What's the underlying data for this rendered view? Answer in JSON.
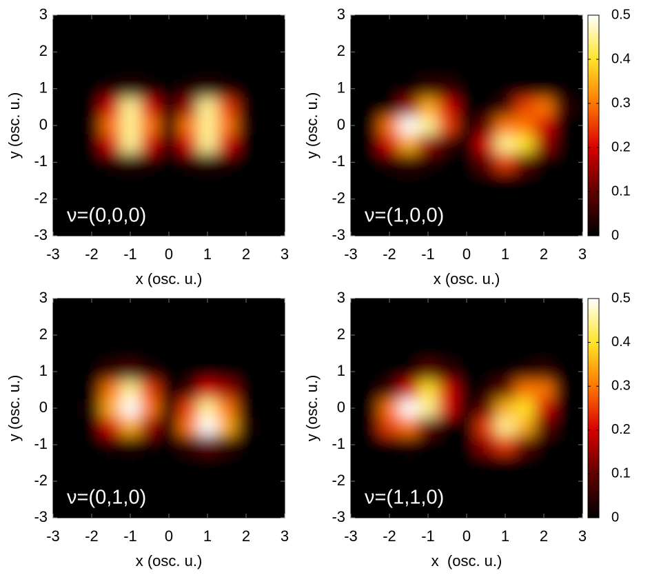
{
  "chart_data": [
    {
      "type": "heatmap",
      "annotation": "ν=(0,0,0)",
      "xlabel": "x (osc. u.)",
      "ylabel": "y (osc. u.)",
      "xlim": [
        -3,
        3
      ],
      "ylim": [
        -3,
        3
      ],
      "xticks": [
        -3,
        -2,
        -1,
        0,
        1,
        2,
        3
      ],
      "yticks": [
        -3,
        -2,
        -1,
        0,
        1,
        2,
        3
      ],
      "zlim": [
        0,
        0.5
      ],
      "colormap": [
        "#000000",
        "#600000",
        "#d80000",
        "#ff7800",
        "#ffe428",
        "#ffffff"
      ],
      "x": [
        -3,
        -2.5,
        -2,
        -1.5,
        -1,
        -0.5,
        0,
        0.5,
        1,
        1.5,
        2,
        2.5,
        3
      ],
      "y": [
        3,
        2.5,
        2,
        1.5,
        1,
        0.5,
        0,
        -0.5,
        -1,
        -1.5,
        -2,
        -2.5,
        -3
      ],
      "z": [
        [
          0,
          0,
          0,
          0,
          0,
          0,
          0,
          0,
          0,
          0,
          0,
          0,
          0
        ],
        [
          0,
          0,
          0,
          0,
          0,
          0,
          0,
          0,
          0,
          0,
          0,
          0,
          0
        ],
        [
          0,
          0,
          0,
          0,
          0,
          0,
          0,
          0,
          0,
          0,
          0,
          0,
          0
        ],
        [
          0,
          0,
          0,
          0,
          0,
          0,
          0,
          0,
          0,
          0,
          0,
          0,
          0
        ],
        [
          0,
          0,
          0,
          0.02,
          0.04,
          0.02,
          0,
          0.02,
          0.04,
          0.02,
          0,
          0,
          0
        ],
        [
          0,
          0,
          0,
          0.2,
          0.45,
          0.2,
          0.02,
          0.15,
          0.45,
          0.25,
          0,
          0,
          0
        ],
        [
          0,
          0,
          0.01,
          0.3,
          0.45,
          0.3,
          0.03,
          0.3,
          0.45,
          0.3,
          0.01,
          0,
          0
        ],
        [
          0,
          0,
          0,
          0.2,
          0.45,
          0.2,
          0.02,
          0.2,
          0.45,
          0.2,
          0,
          0,
          0
        ],
        [
          0,
          0,
          0,
          0.02,
          0.04,
          0.02,
          0,
          0.02,
          0.04,
          0.02,
          0,
          0,
          0
        ],
        [
          0,
          0,
          0,
          0,
          0,
          0,
          0,
          0,
          0,
          0,
          0,
          0,
          0
        ],
        [
          0,
          0,
          0,
          0,
          0,
          0,
          0,
          0,
          0,
          0,
          0,
          0,
          0
        ],
        [
          0,
          0,
          0,
          0,
          0,
          0,
          0,
          0,
          0,
          0,
          0,
          0,
          0
        ],
        [
          0,
          0,
          0,
          0,
          0,
          0,
          0,
          0,
          0,
          0,
          0,
          0,
          0
        ]
      ]
    },
    {
      "type": "heatmap",
      "annotation": "ν=(1,0,0)",
      "xlabel": "x (osc. u.)",
      "ylabel": "y (osc. u.)",
      "xlim": [
        -3,
        3
      ],
      "ylim": [
        -3,
        3
      ],
      "xticks": [
        -3,
        -2,
        -1,
        0,
        1,
        2,
        3
      ],
      "yticks": [
        -3,
        -2,
        -1,
        0,
        1,
        2,
        3
      ],
      "zlim": [
        0,
        0.5
      ],
      "colormap": [
        "#000000",
        "#600000",
        "#d80000",
        "#ff7800",
        "#ffe428",
        "#ffffff"
      ],
      "colorbar": {
        "ticks": [
          0,
          0.1,
          0.2,
          0.3,
          0.4,
          0.5
        ]
      },
      "x": [
        -3,
        -2.5,
        -2,
        -1.5,
        -1,
        -0.5,
        0,
        0.5,
        1,
        1.5,
        2,
        2.5,
        3
      ],
      "y": [
        3,
        2.5,
        2,
        1.5,
        1,
        0.5,
        0,
        -0.5,
        -1,
        -1.5,
        -2,
        -2.5,
        -3
      ],
      "z": [
        [
          0,
          0,
          0,
          0,
          0,
          0,
          0,
          0,
          0,
          0,
          0,
          0,
          0
        ],
        [
          0,
          0,
          0,
          0,
          0,
          0,
          0,
          0,
          0,
          0,
          0,
          0,
          0
        ],
        [
          0,
          0,
          0,
          0,
          0,
          0,
          0,
          0,
          0,
          0,
          0,
          0,
          0
        ],
        [
          0,
          0,
          0,
          0,
          0,
          0,
          0,
          0,
          0,
          0,
          0,
          0,
          0
        ],
        [
          0,
          0,
          0,
          0,
          0.05,
          0.05,
          0,
          0,
          0,
          0,
          0,
          0,
          0
        ],
        [
          0,
          0,
          0,
          0.15,
          0.35,
          0.2,
          0,
          0,
          0.05,
          0.25,
          0.3,
          0.05,
          0
        ],
        [
          0,
          0,
          0.3,
          0.5,
          0.45,
          0.25,
          0,
          0.1,
          0.3,
          0.3,
          0.2,
          0,
          0
        ],
        [
          0,
          0,
          0.2,
          0.35,
          0.15,
          0.05,
          0,
          0.2,
          0.45,
          0.4,
          0.15,
          0,
          0
        ],
        [
          0,
          0,
          0.02,
          0.05,
          0.02,
          0,
          0,
          0.1,
          0.25,
          0.1,
          0,
          0,
          0
        ],
        [
          0,
          0,
          0,
          0,
          0,
          0,
          0,
          0,
          0,
          0,
          0,
          0,
          0
        ],
        [
          0,
          0,
          0,
          0,
          0,
          0,
          0,
          0,
          0,
          0,
          0,
          0,
          0
        ],
        [
          0,
          0,
          0,
          0,
          0,
          0,
          0,
          0,
          0,
          0,
          0,
          0,
          0
        ],
        [
          0,
          0,
          0,
          0,
          0,
          0,
          0,
          0,
          0,
          0,
          0,
          0,
          0
        ]
      ]
    },
    {
      "type": "heatmap",
      "annotation": "ν=(0,1,0)",
      "xlabel": "x (osc. u.)",
      "ylabel": "y (osc. u.)",
      "xlim": [
        -3,
        3
      ],
      "ylim": [
        -3,
        3
      ],
      "xticks": [
        -3,
        -2,
        -1,
        0,
        1,
        2,
        3
      ],
      "yticks": [
        -3,
        -2,
        -1,
        0,
        1,
        2,
        3
      ],
      "zlim": [
        0,
        0.5
      ],
      "colormap": [
        "#000000",
        "#600000",
        "#d80000",
        "#ff7800",
        "#ffe428",
        "#ffffff"
      ],
      "x": [
        -3,
        -2.5,
        -2,
        -1.5,
        -1,
        -0.5,
        0,
        0.5,
        1,
        1.5,
        2,
        2.5,
        3
      ],
      "y": [
        3,
        2.5,
        2,
        1.5,
        1,
        0.5,
        0,
        -0.5,
        -1,
        -1.5,
        -2,
        -2.5,
        -3
      ],
      "z": [
        [
          0,
          0,
          0,
          0,
          0,
          0,
          0,
          0,
          0,
          0,
          0,
          0,
          0
        ],
        [
          0,
          0,
          0,
          0,
          0,
          0,
          0,
          0,
          0,
          0,
          0,
          0,
          0
        ],
        [
          0,
          0,
          0,
          0,
          0,
          0,
          0,
          0,
          0,
          0,
          0,
          0,
          0
        ],
        [
          0,
          0,
          0,
          0,
          0,
          0,
          0,
          0,
          0,
          0,
          0,
          0,
          0
        ],
        [
          0,
          0,
          0,
          0.05,
          0.08,
          0.03,
          0,
          0,
          0,
          0,
          0,
          0,
          0
        ],
        [
          0,
          0,
          0,
          0.3,
          0.45,
          0.25,
          0,
          0.05,
          0.2,
          0.15,
          0,
          0,
          0
        ],
        [
          0,
          0,
          0.02,
          0.35,
          0.5,
          0.3,
          0.02,
          0.25,
          0.45,
          0.3,
          0,
          0,
          0
        ],
        [
          0,
          0,
          0,
          0.2,
          0.35,
          0.15,
          0.02,
          0.3,
          0.5,
          0.35,
          0.02,
          0,
          0
        ],
        [
          0,
          0,
          0,
          0.02,
          0.03,
          0.01,
          0,
          0.05,
          0.1,
          0.05,
          0,
          0,
          0
        ],
        [
          0,
          0,
          0,
          0,
          0,
          0,
          0,
          0,
          0,
          0,
          0,
          0,
          0
        ],
        [
          0,
          0,
          0,
          0,
          0,
          0,
          0,
          0,
          0,
          0,
          0,
          0,
          0
        ],
        [
          0,
          0,
          0,
          0,
          0,
          0,
          0,
          0,
          0,
          0,
          0,
          0,
          0
        ],
        [
          0,
          0,
          0,
          0,
          0,
          0,
          0,
          0,
          0,
          0,
          0,
          0,
          0
        ]
      ]
    },
    {
      "type": "heatmap",
      "annotation": "ν=(1,1,0)",
      "xlabel": "x  (osc. u.)",
      "ylabel": "y (osc. u.)",
      "xlim": [
        -3,
        3
      ],
      "ylim": [
        -3,
        3
      ],
      "xticks": [
        -3,
        -2,
        -1,
        0,
        1,
        2,
        3
      ],
      "yticks": [
        -3,
        -2,
        -1,
        0,
        1,
        2,
        3
      ],
      "zlim": [
        0,
        0.5
      ],
      "colormap": [
        "#000000",
        "#600000",
        "#d80000",
        "#ff7800",
        "#ffe428",
        "#ffffff"
      ],
      "colorbar": {
        "ticks": [
          0,
          0.1,
          0.2,
          0.3,
          0.4,
          0.5
        ]
      },
      "x": [
        -3,
        -2.5,
        -2,
        -1.5,
        -1,
        -0.5,
        0,
        0.5,
        1,
        1.5,
        2,
        2.5,
        3
      ],
      "y": [
        3,
        2.5,
        2,
        1.5,
        1,
        0.5,
        0,
        -0.5,
        -1,
        -1.5,
        -2,
        -2.5,
        -3
      ],
      "z": [
        [
          0,
          0,
          0,
          0,
          0,
          0,
          0,
          0,
          0,
          0,
          0,
          0,
          0
        ],
        [
          0,
          0,
          0,
          0,
          0,
          0,
          0,
          0,
          0,
          0,
          0,
          0,
          0
        ],
        [
          0,
          0,
          0,
          0,
          0,
          0,
          0,
          0,
          0,
          0,
          0,
          0,
          0
        ],
        [
          0,
          0,
          0,
          0,
          0,
          0,
          0,
          0,
          0,
          0,
          0,
          0,
          0
        ],
        [
          0,
          0,
          0,
          0,
          0.1,
          0.05,
          0,
          0,
          0,
          0.02,
          0.05,
          0,
          0
        ],
        [
          0,
          0,
          0.05,
          0.2,
          0.4,
          0.2,
          0,
          0.02,
          0.1,
          0.3,
          0.3,
          0,
          0
        ],
        [
          0,
          0,
          0.3,
          0.5,
          0.45,
          0.2,
          0,
          0.1,
          0.35,
          0.4,
          0.2,
          0,
          0
        ],
        [
          0,
          0,
          0.25,
          0.3,
          0.1,
          0,
          0,
          0.25,
          0.45,
          0.35,
          0.1,
          0,
          0
        ],
        [
          0,
          0,
          0,
          0.02,
          0,
          0,
          0,
          0.15,
          0.25,
          0.1,
          0,
          0,
          0
        ],
        [
          0,
          0,
          0,
          0,
          0,
          0,
          0,
          0,
          0,
          0,
          0,
          0,
          0
        ],
        [
          0,
          0,
          0,
          0,
          0,
          0,
          0,
          0,
          0,
          0,
          0,
          0,
          0
        ],
        [
          0,
          0,
          0,
          0,
          0,
          0,
          0,
          0,
          0,
          0,
          0,
          0,
          0
        ],
        [
          0,
          0,
          0,
          0,
          0,
          0,
          0,
          0,
          0,
          0,
          0,
          0,
          0
        ]
      ]
    }
  ]
}
